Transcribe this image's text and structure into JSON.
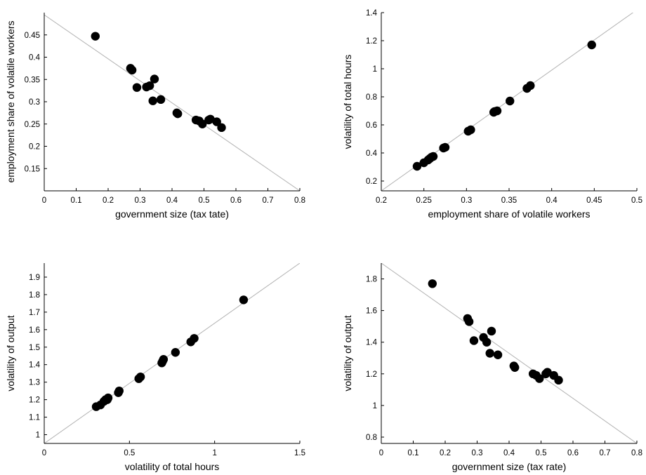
{
  "chart_data": [
    {
      "type": "scatter",
      "xlabel": "government size (tax tate)",
      "ylabel": "employment share of volatile workers",
      "xlim": [
        0,
        0.8
      ],
      "ylim": [
        0.1,
        0.5
      ],
      "xticks": [
        "0",
        "0.1",
        "0.2",
        "0.3",
        "0.4",
        "0.5",
        "0.6",
        "0.7",
        "0.8"
      ],
      "yticks": [
        "0.15",
        "0.2",
        "0.25",
        "0.3",
        "0.35",
        "0.4",
        "0.45"
      ],
      "fit_line": [
        [
          0,
          0.495
        ],
        [
          0.8,
          0.1
        ]
      ],
      "series": [
        {
          "x": [
            0.16,
            0.27,
            0.275,
            0.29,
            0.32,
            0.33,
            0.34,
            0.345,
            0.365,
            0.415,
            0.418,
            0.475,
            0.485,
            0.495,
            0.515,
            0.52,
            0.54,
            0.555
          ],
          "y": [
            0.447,
            0.375,
            0.371,
            0.332,
            0.333,
            0.336,
            0.302,
            0.351,
            0.305,
            0.275,
            0.273,
            0.259,
            0.257,
            0.25,
            0.259,
            0.261,
            0.255,
            0.242
          ]
        }
      ]
    },
    {
      "type": "scatter",
      "xlabel": "employment share of volatile workers",
      "ylabel": "volatility of total hours",
      "xlim": [
        0.2,
        0.5
      ],
      "ylim": [
        0.13,
        1.4
      ],
      "xticks": [
        "0.2",
        "0.25",
        "0.3",
        "0.35",
        "0.4",
        "0.45",
        "0.5"
      ],
      "yticks": [
        "0.2",
        "0.4",
        "0.6",
        "0.8",
        "1",
        "1.2",
        "1.4"
      ],
      "fit_line": [
        [
          0.2,
          0.13
        ],
        [
          0.5,
          1.42
        ]
      ],
      "series": [
        {
          "x": [
            0.242,
            0.25,
            0.255,
            0.257,
            0.259,
            0.261,
            0.273,
            0.275,
            0.302,
            0.305,
            0.332,
            0.333,
            0.336,
            0.351,
            0.371,
            0.375,
            0.447
          ],
          "y": [
            0.305,
            0.33,
            0.35,
            0.36,
            0.37,
            0.375,
            0.435,
            0.44,
            0.555,
            0.565,
            0.69,
            0.695,
            0.7,
            0.77,
            0.86,
            0.88,
            1.17
          ]
        }
      ]
    },
    {
      "type": "scatter",
      "xlabel": "volatility of total hours",
      "ylabel": "volatility of output",
      "xlim": [
        0,
        1.5
      ],
      "ylim": [
        0.95,
        1.98
      ],
      "xticks": [
        "0",
        "0.5",
        "1",
        "1.5"
      ],
      "yticks": [
        "1",
        "1.1",
        "1.2",
        "1.3",
        "1.4",
        "1.5",
        "1.6",
        "1.7",
        "1.8",
        "1.9"
      ],
      "fit_line": [
        [
          0,
          0.95
        ],
        [
          1.5,
          1.98
        ]
      ],
      "series": [
        {
          "x": [
            0.305,
            0.33,
            0.35,
            0.36,
            0.37,
            0.375,
            0.435,
            0.44,
            0.555,
            0.565,
            0.69,
            0.695,
            0.7,
            0.77,
            0.86,
            0.88,
            1.17
          ],
          "y": [
            1.16,
            1.17,
            1.19,
            1.2,
            1.2,
            1.21,
            1.24,
            1.25,
            1.32,
            1.33,
            1.41,
            1.42,
            1.43,
            1.47,
            1.53,
            1.55,
            1.77
          ]
        }
      ]
    },
    {
      "type": "scatter",
      "xlabel": "government size (tax rate)",
      "ylabel": "volatility of output",
      "xlim": [
        0,
        0.8
      ],
      "ylim": [
        0.76,
        1.9
      ],
      "xticks": [
        "0",
        "0.1",
        "0.2",
        "0.3",
        "0.4",
        "0.5",
        "0.6",
        "0.7",
        "0.8"
      ],
      "yticks": [
        "0.8",
        "1",
        "1.2",
        "1.4",
        "1.6",
        "1.8"
      ],
      "fit_line": [
        [
          0,
          1.9
        ],
        [
          0.8,
          0.76
        ]
      ],
      "series": [
        {
          "x": [
            0.16,
            0.27,
            0.275,
            0.29,
            0.32,
            0.33,
            0.34,
            0.345,
            0.365,
            0.415,
            0.418,
            0.475,
            0.485,
            0.495,
            0.515,
            0.52,
            0.54,
            0.555
          ],
          "y": [
            1.77,
            1.55,
            1.53,
            1.41,
            1.43,
            1.4,
            1.33,
            1.47,
            1.32,
            1.25,
            1.24,
            1.2,
            1.19,
            1.17,
            1.2,
            1.21,
            1.19,
            1.16
          ]
        }
      ]
    }
  ]
}
